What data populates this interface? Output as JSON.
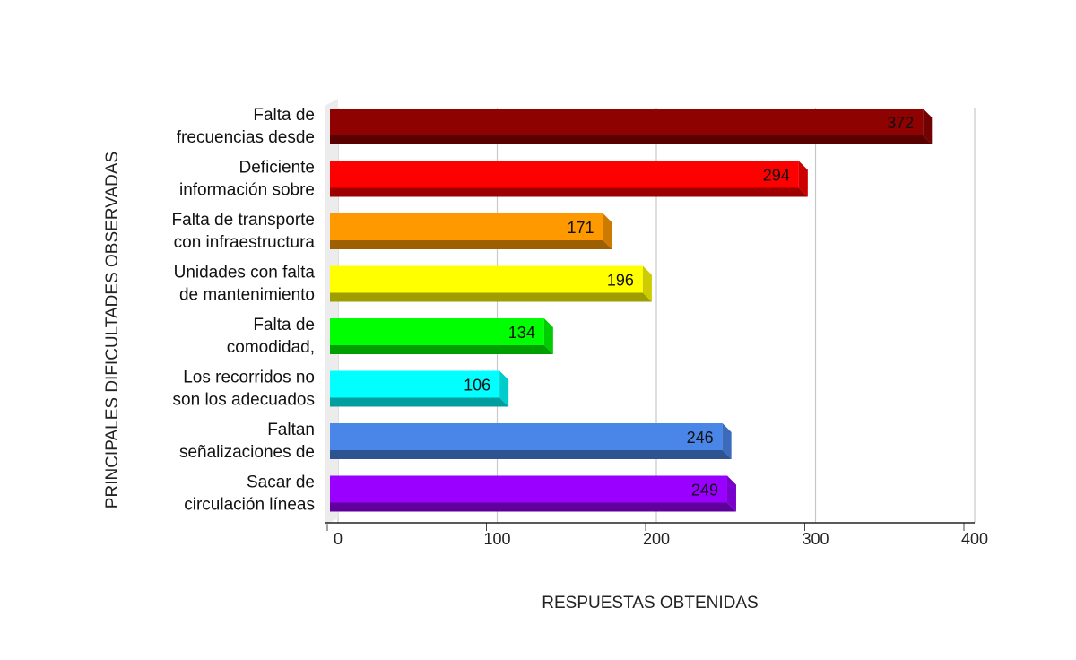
{
  "chart_data": {
    "type": "bar",
    "orientation": "horizontal",
    "style": "3d",
    "categories": [
      [
        "Falta de",
        "frecuencias desde"
      ],
      [
        "Deficiente",
        "información sobre"
      ],
      [
        "Falta de transporte",
        "con infraestructura"
      ],
      [
        "Unidades con falta",
        "de mantenimiento"
      ],
      [
        "Falta de",
        "comodidad,"
      ],
      [
        "Los recorridos no",
        "son los adecuados"
      ],
      [
        "Faltan",
        "señalizaciones de"
      ],
      [
        "Sacar de",
        "circulación líneas"
      ]
    ],
    "values": [
      372,
      294,
      171,
      196,
      134,
      106,
      246,
      249
    ],
    "colors": [
      "#8f0202",
      "#ff0000",
      "#ff9900",
      "#ffff00",
      "#00ff00",
      "#00ffff",
      "#4a86e8",
      "#9900ff"
    ],
    "xlabel": "RESPUESTAS OBTENIDAS",
    "ylabel": "PRINCIPALES DIFICULTADES OBSERVADAS",
    "xlim": [
      0,
      400
    ],
    "xticks": [
      0,
      100,
      200,
      300,
      400
    ],
    "grid": true,
    "legend": "none"
  }
}
